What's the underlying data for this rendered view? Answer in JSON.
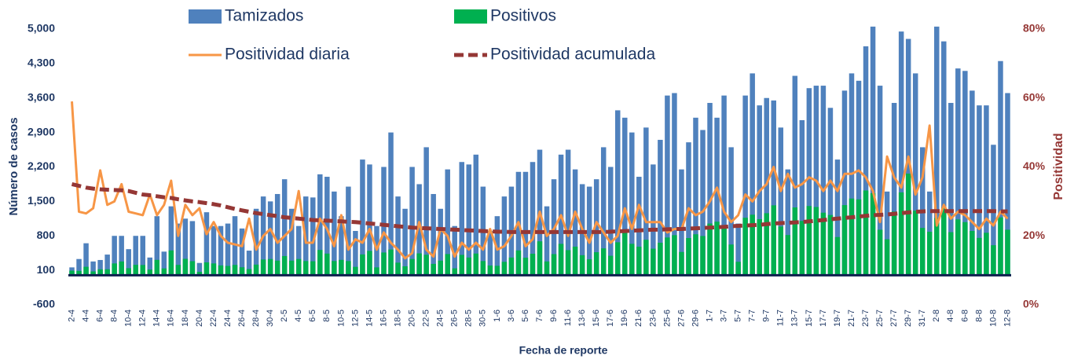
{
  "chart_data": {
    "type": "combo",
    "xlabel": "Fecha de reporte",
    "ylabel": "Número de casos",
    "y2label": "Positividad",
    "categories": [
      "2-4",
      null,
      "4-4",
      null,
      "6-4",
      null,
      "8-4",
      null,
      "10-4",
      null,
      "12-4",
      null,
      "14-4",
      null,
      "16-4",
      null,
      "18-4",
      null,
      "20-4",
      null,
      "22-4",
      null,
      "24-4",
      null,
      "26-4",
      null,
      "28-4",
      null,
      "30-4",
      null,
      "2-5",
      null,
      "4-5",
      null,
      "6-5",
      null,
      "8-5",
      null,
      "10-5",
      null,
      "12-5",
      null,
      "14-5",
      null,
      "16-5",
      null,
      "18-5",
      null,
      "20-5",
      null,
      "22-5",
      null,
      "24-5",
      null,
      "26-5",
      null,
      "28-5",
      null,
      "30-5",
      null,
      "1-6",
      null,
      "3-6",
      null,
      "5-6",
      null,
      "7-6",
      null,
      "9-6",
      null,
      "11-6",
      null,
      "13-6",
      null,
      "15-6",
      null,
      "17-6",
      null,
      "19-6",
      null,
      "21-6",
      null,
      "23-6",
      null,
      "25-6",
      null,
      "27-6",
      null,
      "29-6",
      null,
      "1-7",
      null,
      "3-7",
      null,
      "5-7",
      null,
      "7-7",
      null,
      "9-7",
      null,
      "11-7",
      null,
      "13-7",
      null,
      "15-7",
      null,
      "17-7",
      null,
      "19-7",
      null,
      "21-7",
      null,
      "23-7",
      null,
      "25-7",
      null,
      "27-7",
      null,
      "29-7",
      null,
      "31-7",
      null,
      "2-8",
      null,
      "4-8",
      null,
      "6-8",
      null,
      "8-8",
      null,
      "10-8",
      null,
      "12-8"
    ],
    "ylim": [
      -600,
      5000
    ],
    "yticks": [
      -600,
      100,
      800,
      {
        "value": 1500,
        "label": "1,500"
      },
      {
        "value": 2200,
        "label": "2,200"
      },
      {
        "value": 2900,
        "label": "2,900"
      },
      {
        "value": 3600,
        "label": "3,600"
      },
      {
        "value": 4300,
        "label": "4,300"
      },
      {
        "value": 5000,
        "label": "5,000"
      }
    ],
    "y2lim": [
      0,
      80
    ],
    "y2ticks": [
      {
        "value": 0,
        "label": "0%"
      },
      {
        "value": 20,
        "label": "20%"
      },
      {
        "value": 40,
        "label": "40%"
      },
      {
        "value": 60,
        "label": "60%"
      },
      {
        "value": 80,
        "label": "80%"
      }
    ],
    "series": [
      {
        "name": "Tamizados",
        "type": "bar",
        "color": "#4f81bd",
        "values": [
          160,
          330,
          650,
          280,
          310,
          420,
          800,
          800,
          530,
          800,
          800,
          360,
          1200,
          480,
          1400,
          1050,
          1150,
          1100,
          250,
          1280,
          1000,
          1000,
          1050,
          1200,
          950,
          500,
          1350,
          1600,
          1500,
          1650,
          1950,
          1350,
          1000,
          1600,
          1580,
          2050,
          2000,
          1700,
          1200,
          1800,
          900,
          2350,
          2250,
          1000,
          2200,
          2900,
          1600,
          1350,
          2200,
          1850,
          2600,
          1650,
          1350,
          2150,
          1000,
          2300,
          2250,
          2450,
          1800,
          900,
          1200,
          1600,
          1800,
          2100,
          2100,
          2300,
          2550,
          1400,
          1950,
          2450,
          2550,
          2150,
          1850,
          1800,
          1950,
          2600,
          2200,
          3350,
          3200,
          2900,
          2000,
          3000,
          2250,
          2750,
          3650,
          3700,
          2150,
          2700,
          3200,
          2950,
          3500,
          3200,
          3650,
          2600,
          1050,
          3650,
          4100,
          3450,
          3600,
          3550,
          3000,
          2150,
          4050,
          3150,
          3800,
          3850,
          3850,
          3400,
          2350,
          3750,
          4100,
          3950,
          4650,
          5050,
          3850,
          1700,
          3500,
          4950,
          4800,
          4100,
          2600,
          1700,
          5050,
          4750,
          3500,
          4200,
          4150,
          3750,
          3450,
          3450,
          2650,
          4350,
          3700
        ]
      },
      {
        "name": "Positivos",
        "type": "bar",
        "color": "#00b050",
        "values": [
          94,
          89,
          172,
          78,
          121,
          122,
          240,
          280,
          143,
          212,
          208,
          115,
          312,
          139,
          504,
          210,
          334,
          286,
          70,
          262,
          240,
          200,
          189,
          210,
          162,
          125,
          216,
          320,
          330,
          297,
          390,
          297,
          330,
          288,
          284,
          513,
          440,
          289,
          312,
          288,
          171,
          423,
          495,
          160,
          462,
          522,
          256,
          182,
          330,
          444,
          416,
          231,
          297,
          430,
          140,
          414,
          360,
          441,
          288,
          198,
          192,
          272,
          360,
          504,
          357,
          437,
          689,
          280,
          429,
          637,
          510,
          581,
          407,
          324,
          468,
          546,
          396,
          670,
          896,
          638,
          580,
          720,
          540,
          660,
          767,
          814,
          473,
          756,
          832,
          797,
          1050,
          1088,
          986,
          624,
          273,
          1168,
          1230,
          1139,
          1260,
          1420,
          990,
          817,
          1377,
          1103,
          1406,
          1386,
          1271,
          1224,
          776,
          1425,
          1558,
          1541,
          1721,
          1667,
          924,
          731,
          1295,
          1683,
          2064,
          1312,
          962,
          884,
          1162,
          1378,
          875,
          1134,
          1079,
          900,
          759,
          863,
          610,
          1175,
          925
        ]
      },
      {
        "name": "Positividad diaria",
        "type": "line",
        "axis": "y2",
        "color": "#f79646",
        "values": [
          59,
          27,
          26.5,
          28,
          39,
          29,
          30,
          35,
          27,
          26.5,
          26,
          32,
          26,
          29,
          36,
          20,
          29,
          26,
          28,
          20.5,
          24,
          20,
          18,
          17.5,
          17,
          25,
          16,
          20,
          22,
          18,
          20,
          22,
          33,
          18,
          18,
          25,
          22,
          17,
          26,
          16,
          19,
          18,
          22,
          16,
          21,
          18,
          16,
          13.5,
          15,
          24,
          16,
          14,
          22,
          20,
          14,
          18,
          16,
          18,
          16,
          22,
          16,
          17,
          20,
          24,
          17,
          19,
          27,
          20,
          22,
          26,
          20,
          27,
          22,
          18,
          24,
          21,
          18,
          20,
          28,
          22,
          29,
          24,
          24,
          24,
          21,
          22,
          22,
          28,
          26,
          27,
          30,
          34,
          27,
          24,
          26,
          32,
          30,
          33,
          35,
          40,
          33,
          38,
          34,
          35,
          37,
          36,
          33,
          36,
          33,
          38,
          38,
          39,
          37,
          33,
          24,
          43,
          37,
          34,
          43,
          32,
          37,
          52,
          23,
          29,
          25,
          27,
          26,
          24,
          22,
          25,
          23,
          27,
          25
        ]
      },
      {
        "name": "Positividad acumulada",
        "type": "line",
        "axis": "y2",
        "dashed": true,
        "color": "#953735",
        "values": [
          35,
          34.5,
          34,
          33.7,
          33.5,
          33.4,
          33.3,
          33.2,
          33,
          32.5,
          32,
          31.8,
          31.5,
          31.2,
          31,
          30.6,
          30.3,
          30,
          29.8,
          29.5,
          29.2,
          28.8,
          28.3,
          27.8,
          27.4,
          27,
          26.6,
          26.3,
          26,
          25.7,
          25.4,
          25.2,
          25,
          24.8,
          24.6,
          24.5,
          24.4,
          24.3,
          24.2,
          24.1,
          24,
          23.8,
          23.6,
          23.4,
          23.2,
          23,
          22.8,
          22.6,
          22.4,
          22.3,
          22.2,
          22.1,
          22,
          21.9,
          21.8,
          21.7,
          21.6,
          21.5,
          21.4,
          21.3,
          21.2,
          21.2,
          21.1,
          21.1,
          21.1,
          21.1,
          21.1,
          21.1,
          21.1,
          21.1,
          21.1,
          21.1,
          21.1,
          21.1,
          21.1,
          21.1,
          21.2,
          21.3,
          21.4,
          21.5,
          21.6,
          21.7,
          21.8,
          21.8,
          21.9,
          22,
          22,
          22.1,
          22.2,
          22.3,
          22.4,
          22.5,
          22.6,
          22.8,
          22.9,
          23,
          23.1,
          23.2,
          23.4,
          23.6,
          23.7,
          23.8,
          23.9,
          24,
          24.2,
          24.4,
          24.6,
          24.8,
          25,
          25.2,
          25.4,
          25.6,
          25.8,
          26,
          26.1,
          26.2,
          26.4,
          26.6,
          26.8,
          27,
          27.1,
          27.2,
          27.2,
          27.2,
          27.2,
          27.2,
          27.2,
          27.2,
          27.2,
          27.2,
          27.2,
          27.1,
          27.1
        ]
      }
    ]
  }
}
